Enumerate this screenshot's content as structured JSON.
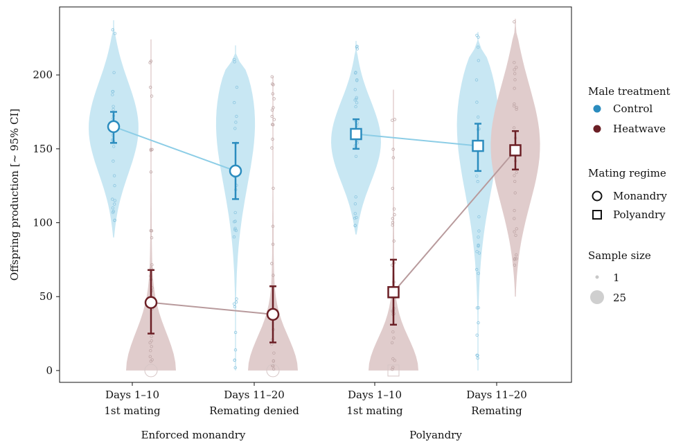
{
  "chart_data": {
    "type": "violin",
    "ylabel": "Offspring production [~ 95% CI]",
    "ylim": [
      -8,
      246
    ],
    "yticks": [
      0,
      50,
      100,
      150,
      200
    ],
    "groups": [
      {
        "label": "Enforced monandry",
        "categories": [
          "Days 1–10\n1st mating",
          "Days 11–20\nRemating denied"
        ]
      },
      {
        "label": "Polyandry",
        "categories": [
          "Days 1–10\n1st mating",
          "Days 11–20\nRemating"
        ]
      }
    ],
    "category_labels": [
      {
        "line1": "Days 1–10",
        "line2": "1st mating"
      },
      {
        "line1": "Days 11–20",
        "line2": "Remating denied"
      },
      {
        "line1": "Days 1–10",
        "line2": "1st mating"
      },
      {
        "line1": "Days 11–20",
        "line2": "Remating"
      }
    ],
    "series": [
      {
        "name": "Control",
        "color": "#2b8cbe",
        "violin_color": "#c8e7f3",
        "points": [
          {
            "category": 0,
            "regime": "Monandry",
            "mean": 165,
            "lo": 154,
            "hi": 175
          },
          {
            "category": 1,
            "regime": "Monandry",
            "mean": 135,
            "lo": 116,
            "hi": 154
          },
          {
            "category": 2,
            "regime": "Polyandry",
            "mean": 160,
            "lo": 150,
            "hi": 170
          },
          {
            "category": 3,
            "regime": "Polyandry",
            "mean": 152,
            "lo": 135,
            "hi": 167
          }
        ],
        "violins": [
          {
            "category": 0,
            "min": 90,
            "max": 237,
            "peak": 165
          },
          {
            "category": 1,
            "min": 0,
            "max": 220,
            "peak": 185
          },
          {
            "category": 2,
            "min": 92,
            "max": 223,
            "peak": 155
          },
          {
            "category": 3,
            "min": 0,
            "max": 229,
            "peak": 180
          }
        ]
      },
      {
        "name": "Heatwave",
        "color": "#6b1f25",
        "violin_color": "#e0cccc",
        "points": [
          {
            "category": 0,
            "regime": "Monandry",
            "mean": 46,
            "lo": 25,
            "hi": 68
          },
          {
            "category": 1,
            "regime": "Monandry",
            "mean": 38,
            "lo": 19,
            "hi": 57
          },
          {
            "category": 2,
            "regime": "Polyandry",
            "mean": 53,
            "lo": 31,
            "hi": 75
          },
          {
            "category": 3,
            "regime": "Polyandry",
            "mean": 149,
            "lo": 136,
            "hi": 162
          }
        ],
        "violins": [
          {
            "category": 0,
            "min": 0,
            "max": 224,
            "peak": 0
          },
          {
            "category": 1,
            "min": 0,
            "max": 199,
            "peak": 0
          },
          {
            "category": 2,
            "min": 0,
            "max": 190,
            "peak": 0
          },
          {
            "category": 3,
            "min": 50,
            "max": 238,
            "peak": 155
          }
        ]
      }
    ],
    "legend": {
      "placement": "right",
      "treatment_title": "Male treatment",
      "treatment_items": [
        {
          "label": "Control",
          "color": "#2b8cbe"
        },
        {
          "label": "Heatwave",
          "color": "#6b1f25"
        }
      ],
      "regime_title": "Mating regime",
      "regime_items": [
        {
          "label": "Monandry",
          "shape": "circle"
        },
        {
          "label": "Polyandry",
          "shape": "square"
        }
      ],
      "size_title": "Sample size",
      "size_items": [
        {
          "label": "1"
        },
        {
          "label": "25"
        }
      ]
    }
  }
}
